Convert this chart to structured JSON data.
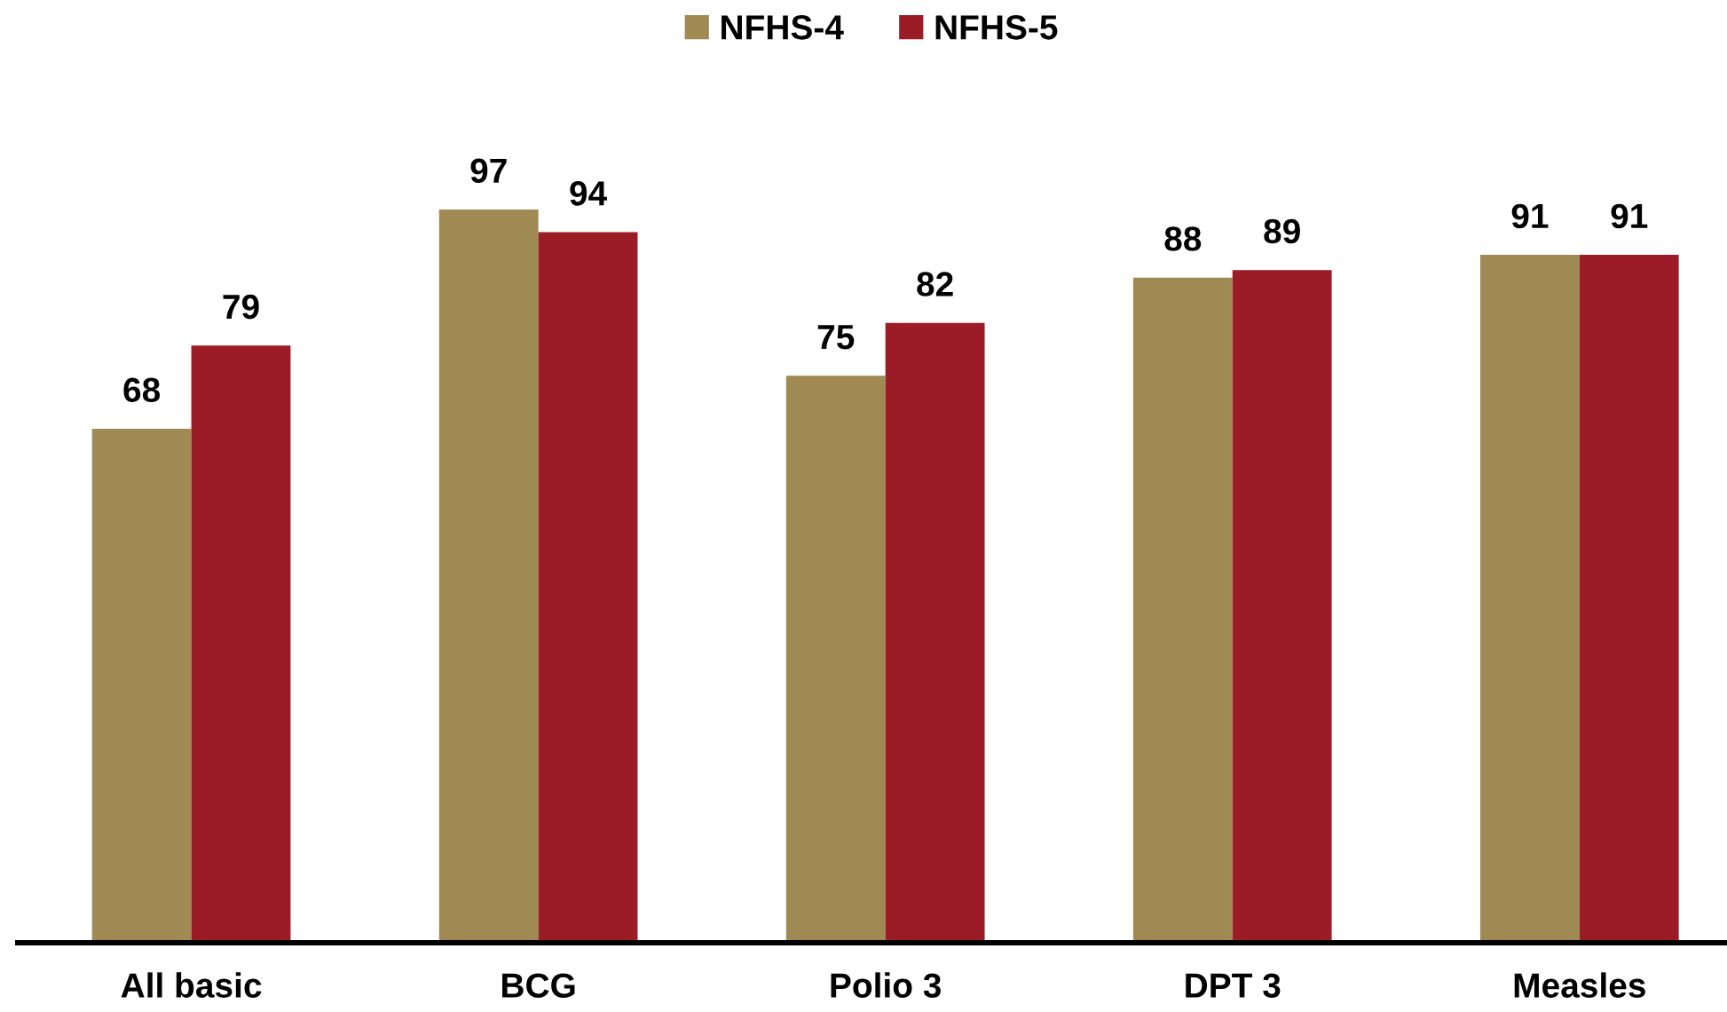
{
  "chart_data": {
    "type": "bar",
    "categories": [
      "All basic",
      "BCG",
      "Polio 3",
      "DPT 3",
      "Measles"
    ],
    "series": [
      {
        "name": "NFHS-4",
        "color": "#a08a53",
        "values": [
          68,
          97,
          75,
          88,
          91
        ]
      },
      {
        "name": "NFHS-5",
        "color": "#9b1c26",
        "values": [
          79,
          94,
          82,
          89,
          91
        ]
      }
    ],
    "data_labels": true,
    "legend": "top",
    "tick_labels": "x"
  }
}
